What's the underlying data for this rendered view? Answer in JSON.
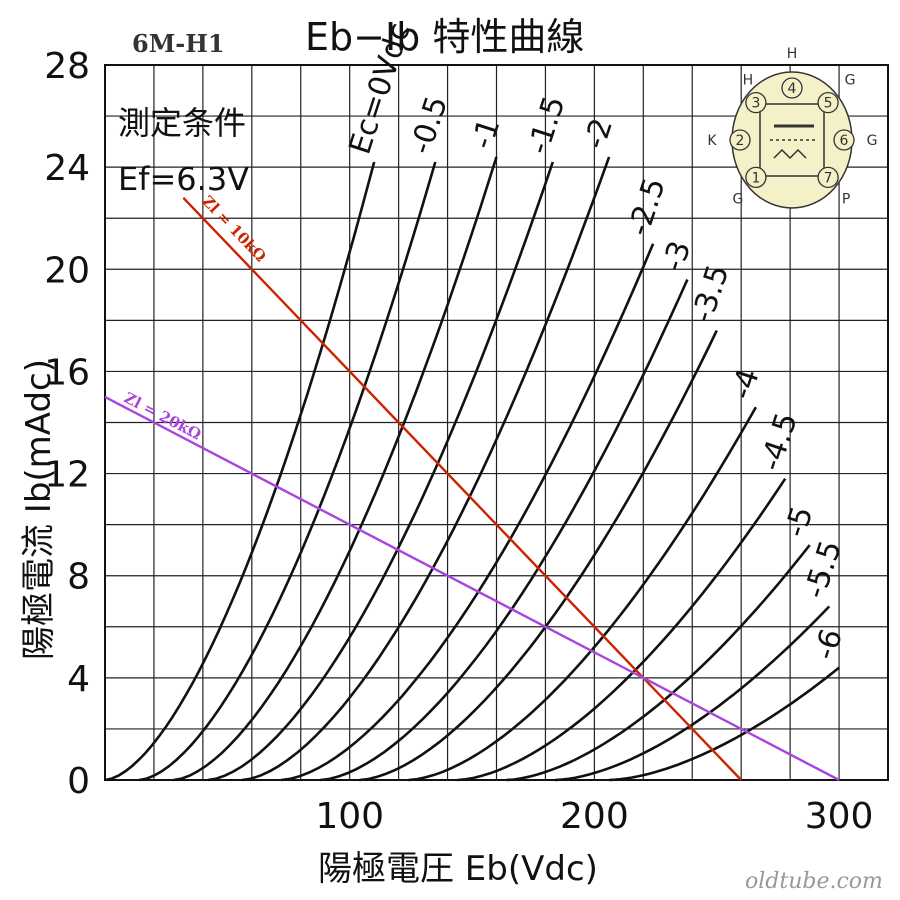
{
  "chart_data": {
    "type": "line",
    "tube": "6M-H1",
    "title": "Eb−Ib 特性曲線",
    "xlabel": "陽極電圧 Eb(Vdc)",
    "ylabel": "陽極電流 Ib(mAdc)",
    "xlim": [
      0,
      320
    ],
    "ylim": [
      0,
      28
    ],
    "x_ticks": [
      100,
      200,
      300
    ],
    "y_ticks": [
      0,
      4,
      8,
      12,
      16,
      20,
      24,
      28
    ],
    "grid": true,
    "conditions": {
      "heading": "測定条件",
      "ef": "Ef=6.3V"
    },
    "series": [
      {
        "name": "Ec=0Vdc",
        "label": "Ec=0Vdc",
        "start": 0,
        "end": [
          110,
          24.2
        ]
      },
      {
        "name": "-0.5",
        "label": "-0.5",
        "start": 14,
        "end": [
          135,
          24.2
        ]
      },
      {
        "name": "-1",
        "label": "-1",
        "start": 28,
        "end": [
          160,
          24.4
        ]
      },
      {
        "name": "-1.5",
        "label": "-1.5",
        "start": 42,
        "end": [
          183,
          24.2
        ]
      },
      {
        "name": "-2",
        "label": "-2",
        "start": 56,
        "end": [
          206,
          24.4
        ]
      },
      {
        "name": "-2.5",
        "label": "-2.5",
        "start": 72,
        "end": [
          224,
          21.0
        ]
      },
      {
        "name": "-3",
        "label": "-3",
        "start": 88,
        "end": [
          238,
          19.6
        ]
      },
      {
        "name": "-3.5",
        "label": "-3.5",
        "start": 104,
        "end": [
          250,
          17.6
        ]
      },
      {
        "name": "-4",
        "label": "-4",
        "start": 124,
        "end": [
          266,
          14.6
        ]
      },
      {
        "name": "-4.5",
        "label": "-4.5",
        "start": 144,
        "end": [
          278,
          11.8
        ]
      },
      {
        "name": "-5",
        "label": "-5",
        "start": 164,
        "end": [
          288,
          9.2
        ]
      },
      {
        "name": "-5.5",
        "label": "-5.5",
        "start": 184,
        "end": [
          296,
          6.8
        ]
      },
      {
        "name": "-6",
        "label": "-6",
        "start": 206,
        "end": [
          300,
          4.4
        ]
      }
    ],
    "load_lines": [
      {
        "name": "Zl = 10kΩ",
        "color": "#cc2200",
        "from": [
          32,
          22.8
        ],
        "to": [
          260,
          0
        ]
      },
      {
        "name": "Zl = 20kΩ",
        "color": "#aa44dd",
        "from": [
          0,
          15.0
        ],
        "to": [
          300,
          0
        ]
      }
    ]
  },
  "pin_diagram": {
    "pins": [
      {
        "num": "1",
        "label": "G"
      },
      {
        "num": "2",
        "label": "K"
      },
      {
        "num": "3",
        "label": "H"
      },
      {
        "num": "4",
        "label": "H"
      },
      {
        "num": "5",
        "label": "G"
      },
      {
        "num": "6",
        "label": "G"
      },
      {
        "num": "7",
        "label": "P"
      }
    ]
  },
  "watermark": "oldtube.com"
}
